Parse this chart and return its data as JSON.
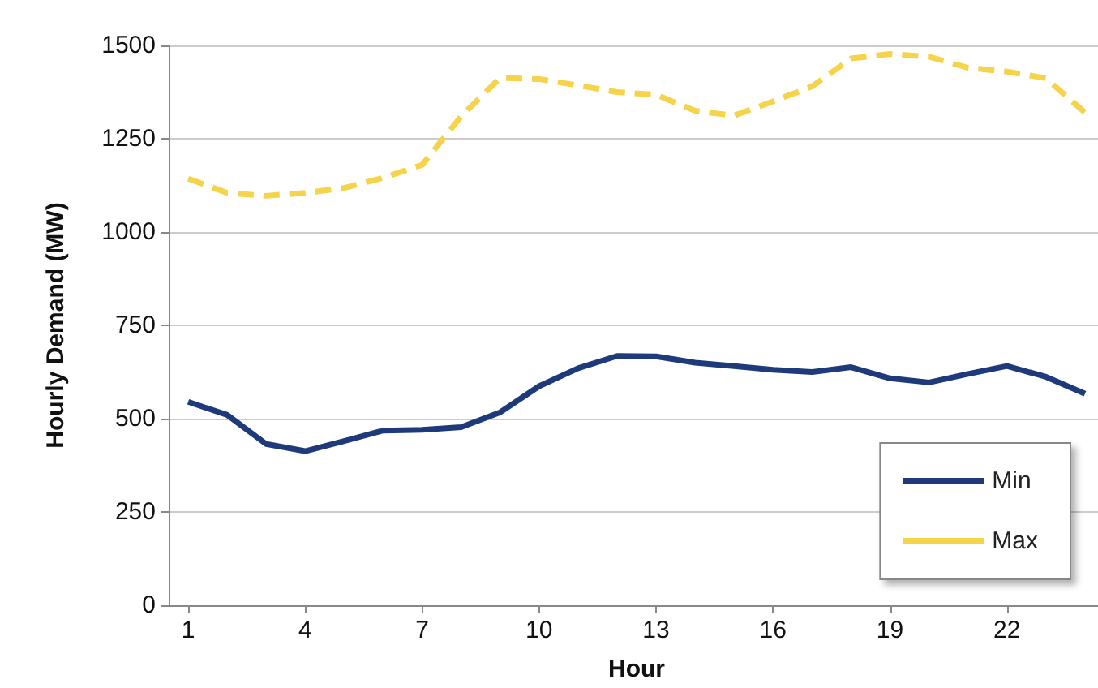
{
  "chart_data": {
    "type": "line",
    "xlabel": "Hour",
    "ylabel": "Hourly Demand (MW)",
    "x": [
      1,
      2,
      3,
      4,
      5,
      6,
      7,
      8,
      9,
      10,
      11,
      12,
      13,
      14,
      15,
      16,
      17,
      18,
      19,
      20,
      21,
      22,
      23,
      24
    ],
    "series": [
      {
        "name": "Min",
        "color": "#1f3a7a",
        "line_style": "solid",
        "values": [
          545,
          510,
          432,
          413,
          440,
          468,
          470,
          477,
          517,
          587,
          635,
          668,
          667,
          650,
          641,
          631,
          625,
          638,
          608,
          597,
          620,
          641,
          612,
          567
        ]
      },
      {
        "name": "Max",
        "color": "#f5d34a",
        "line_style": "dashed",
        "values": [
          1143,
          1105,
          1097,
          1105,
          1118,
          1145,
          1180,
          1310,
          1413,
          1410,
          1393,
          1375,
          1368,
          1325,
          1312,
          1350,
          1390,
          1465,
          1477,
          1470,
          1440,
          1430,
          1412,
          1320
        ]
      }
    ],
    "xlim": [
      0.5,
      24.5
    ],
    "xticks": [
      1,
      4,
      7,
      10,
      13,
      16,
      19,
      22
    ],
    "ylim": [
      0,
      1500
    ],
    "yticks": [
      0,
      250,
      500,
      750,
      1000,
      1250,
      1500
    ],
    "grid": "y",
    "legend": "bottom right",
    "marker": "none"
  }
}
